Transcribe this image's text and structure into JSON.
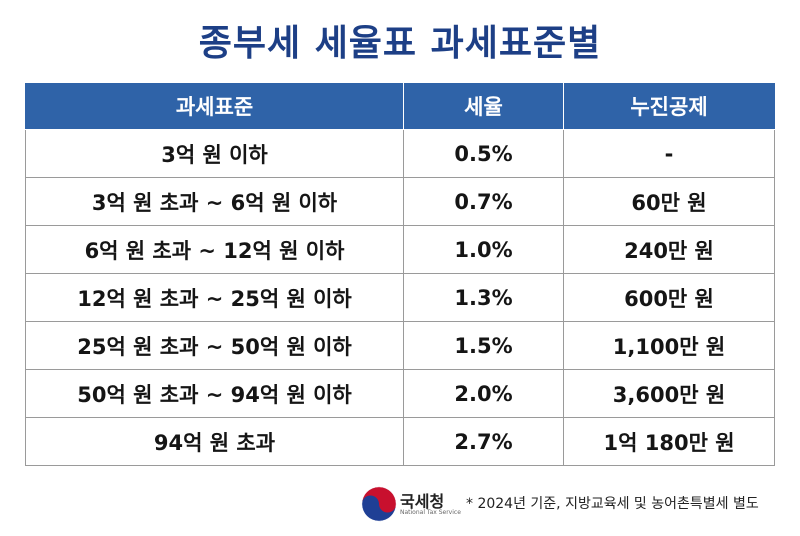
{
  "title": "종부세 세율표 과세표준별",
  "table": {
    "headers": [
      "과세표준",
      "세율",
      "누진공제"
    ],
    "rows": [
      [
        "3억 원 이하",
        "0.5%",
        "-"
      ],
      [
        "3억 원 초과 ~ 6억 원 이하",
        "0.7%",
        "60만 원"
      ],
      [
        "6억 원 초과 ~ 12억 원 이하",
        "1.0%",
        "240만 원"
      ],
      [
        "12억 원 초과 ~ 25억 원 이하",
        "1.3%",
        "600만 원"
      ],
      [
        "25억 원 초과 ~ 50억 원 이하",
        "1.5%",
        "1,100만 원"
      ],
      [
        "50억 원 초과 ~ 94억 원 이하",
        "2.0%",
        "3,600만 원"
      ],
      [
        "94억 원 초과",
        "2.7%",
        "1억 180만 원"
      ]
    ]
  },
  "footer": {
    "agency_name": "국세청",
    "agency_name_en": "National Tax Service",
    "footnote": "* 2024년 기준, 지방교육세 및 농어촌특별세 별도"
  },
  "colors": {
    "title": "#1d3f86",
    "header_bg": "#2f63a8",
    "logo_red": "#c8102e",
    "logo_blue": "#1f3f95"
  }
}
